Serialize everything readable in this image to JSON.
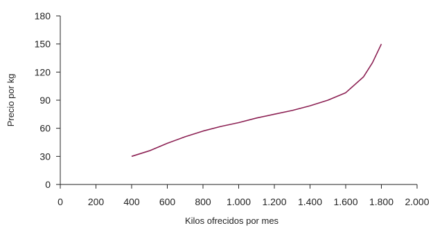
{
  "chart_data": {
    "type": "line",
    "title": "",
    "xlabel": "Kilos ofrecidos por mes",
    "ylabel": "Precio por kg",
    "xlim": [
      0,
      2000
    ],
    "ylim": [
      0,
      180
    ],
    "x_ticks": [
      0,
      200,
      400,
      600,
      800,
      1000,
      1200,
      1400,
      1600,
      1800,
      2000
    ],
    "x_tick_labels": [
      "0",
      "200",
      "400",
      "600",
      "800",
      "1.000",
      "1.200",
      "1.400",
      "1.600",
      "1.800",
      "2.000"
    ],
    "y_ticks": [
      0,
      30,
      60,
      90,
      120,
      150,
      180
    ],
    "y_tick_labels": [
      "0",
      "30",
      "60",
      "90",
      "120",
      "150",
      "180"
    ],
    "grid": false,
    "series": [
      {
        "color": "#8b1f52",
        "x": [
          400,
          500,
          600,
          700,
          800,
          900,
          1000,
          1100,
          1200,
          1300,
          1400,
          1500,
          1550,
          1600,
          1700,
          1750,
          1800
        ],
        "y": [
          30,
          36,
          44,
          51,
          57,
          62,
          66,
          71,
          75,
          79,
          84,
          90,
          94,
          98,
          115,
          130,
          150
        ]
      }
    ]
  }
}
